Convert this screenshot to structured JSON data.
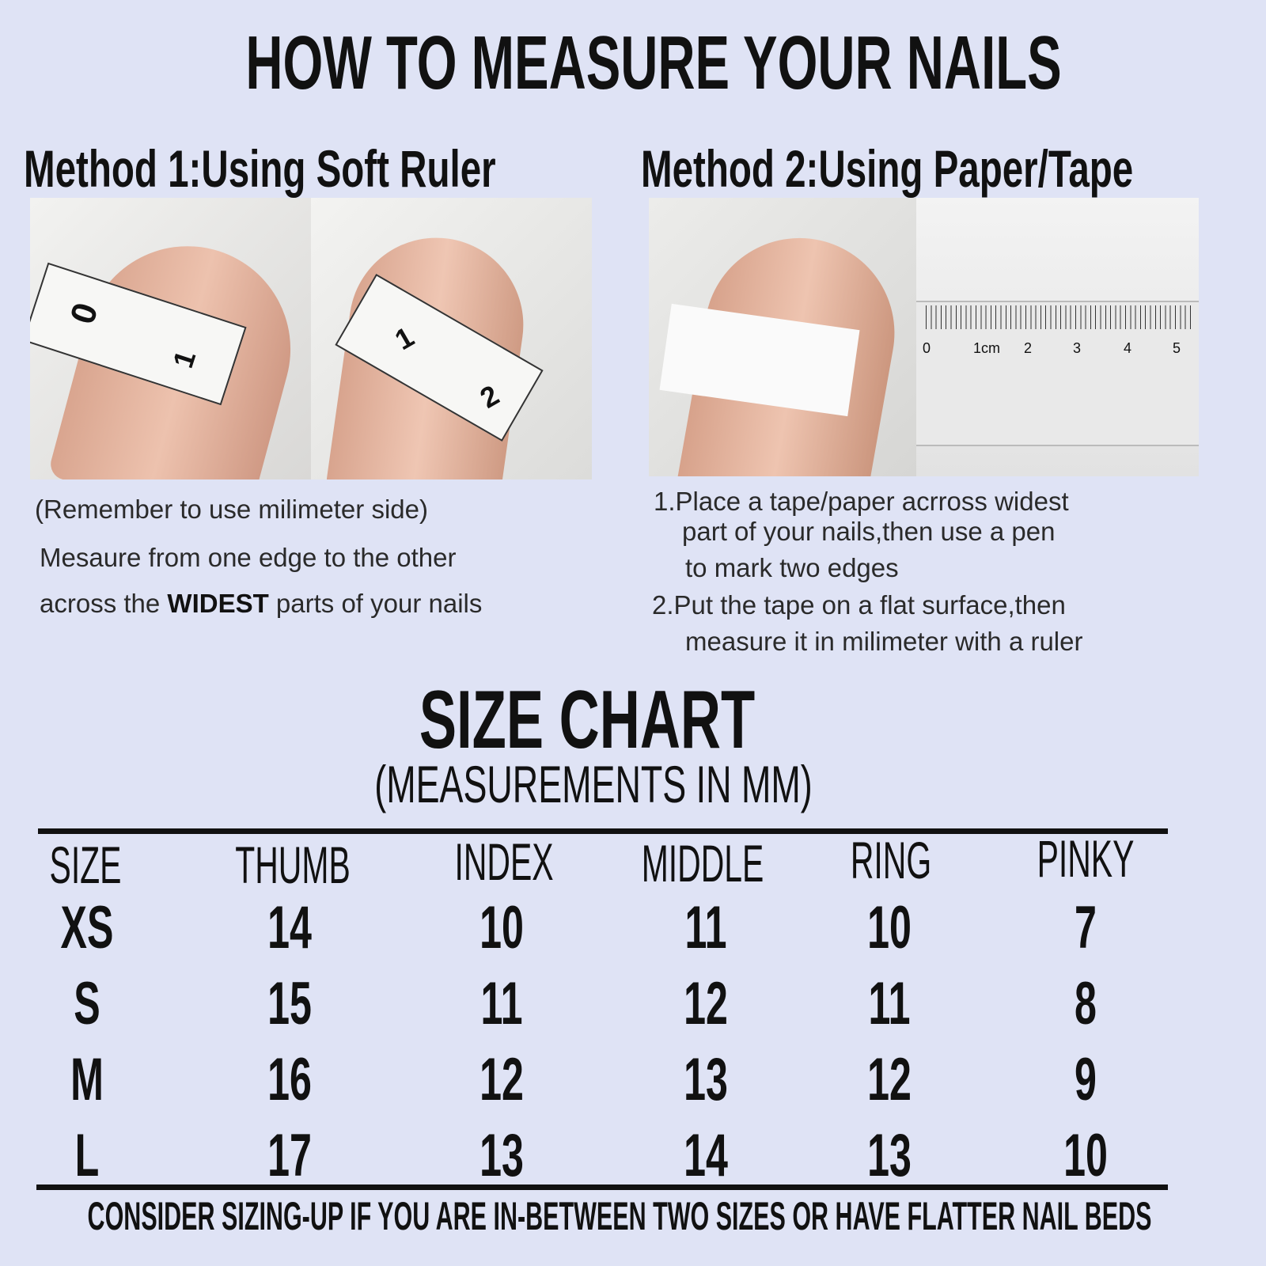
{
  "title": "HOW TO MEASURE YOUR NAILS",
  "method1": {
    "heading": "Method 1:Using Soft Ruler",
    "note": "(Remember to use milimeter side)",
    "line1": "Mesaure from one edge to the other",
    "line2_pre": "across the ",
    "line2_bold": "WIDEST",
    "line2_post": " parts of your nails",
    "tape_marks": [
      "0",
      "1",
      "1",
      "2"
    ]
  },
  "method2": {
    "heading": "Method 2:Using Paper/Tape",
    "steps": [
      "1.Place a tape/paper acrross widest",
      "part of your nails,then use a pen",
      "to mark two edges",
      "2.Put the tape on a flat surface,then",
      "measure it in milimeter with a ruler"
    ],
    "ruler_labels": [
      "0",
      "1cm",
      "2",
      "3",
      "4",
      "5"
    ]
  },
  "size_chart": {
    "title": "SIZE CHART",
    "subtitle": "(MEASUREMENTS IN MM)",
    "columns": [
      "SIZE",
      "THUMB",
      "INDEX",
      "MIDDLE",
      "RING",
      "PINKY"
    ],
    "rows": [
      [
        "XS",
        "14",
        "10",
        "11",
        "10",
        "7"
      ],
      [
        "S",
        "15",
        "11",
        "12",
        "11",
        "8"
      ],
      [
        "M",
        "16",
        "12",
        "13",
        "12",
        "9"
      ],
      [
        "L",
        "17",
        "13",
        "14",
        "13",
        "10"
      ]
    ]
  },
  "footer": "CONSIDER SIZING-UP IF YOU ARE IN-BETWEEN TWO SIZES OR HAVE FLATTER NAIL BEDS",
  "colors": {
    "background": "#dfe3f5",
    "text": "#111111"
  }
}
